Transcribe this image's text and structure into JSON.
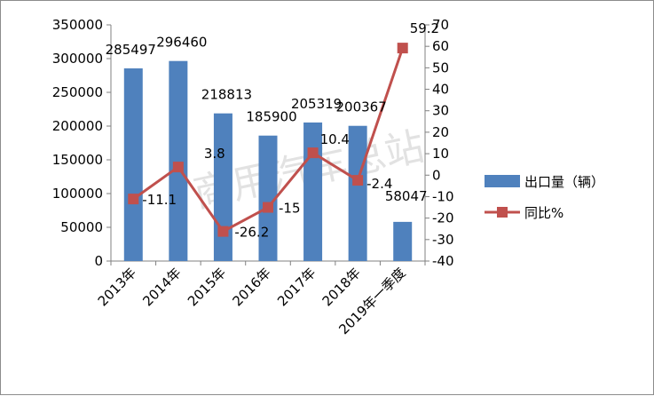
{
  "watermark": "商用汽车总站",
  "colors": {
    "bar": "#4F81BD",
    "line": "#C0504D",
    "axis": "#808080",
    "frame": "#8c8c8c"
  },
  "chart_data": {
    "type": "bar",
    "categories": [
      "2013年",
      "2014年",
      "2015年",
      "2016年",
      "2017年",
      "2018年",
      "2019年一季度"
    ],
    "series": [
      {
        "name": "出口量（辆）",
        "type": "bar",
        "axis": "left",
        "values": [
          285497,
          296460,
          218813,
          185900,
          205319,
          200367,
          58047
        ]
      },
      {
        "name": "同比%",
        "type": "line",
        "axis": "right",
        "values": [
          -11.1,
          3.8,
          -26.2,
          -15,
          10.4,
          -2.4,
          59.2
        ]
      }
    ],
    "y_left": {
      "ylim": [
        0,
        350000
      ],
      "ticks": [
        0,
        50000,
        100000,
        150000,
        200000,
        250000,
        300000,
        350000
      ]
    },
    "y_right": {
      "ylim": [
        -40,
        70
      ],
      "ticks": [
        -40,
        -30,
        -20,
        -10,
        0,
        10,
        20,
        30,
        40,
        50,
        60,
        70
      ]
    },
    "legend_position": "right",
    "grid": false
  }
}
